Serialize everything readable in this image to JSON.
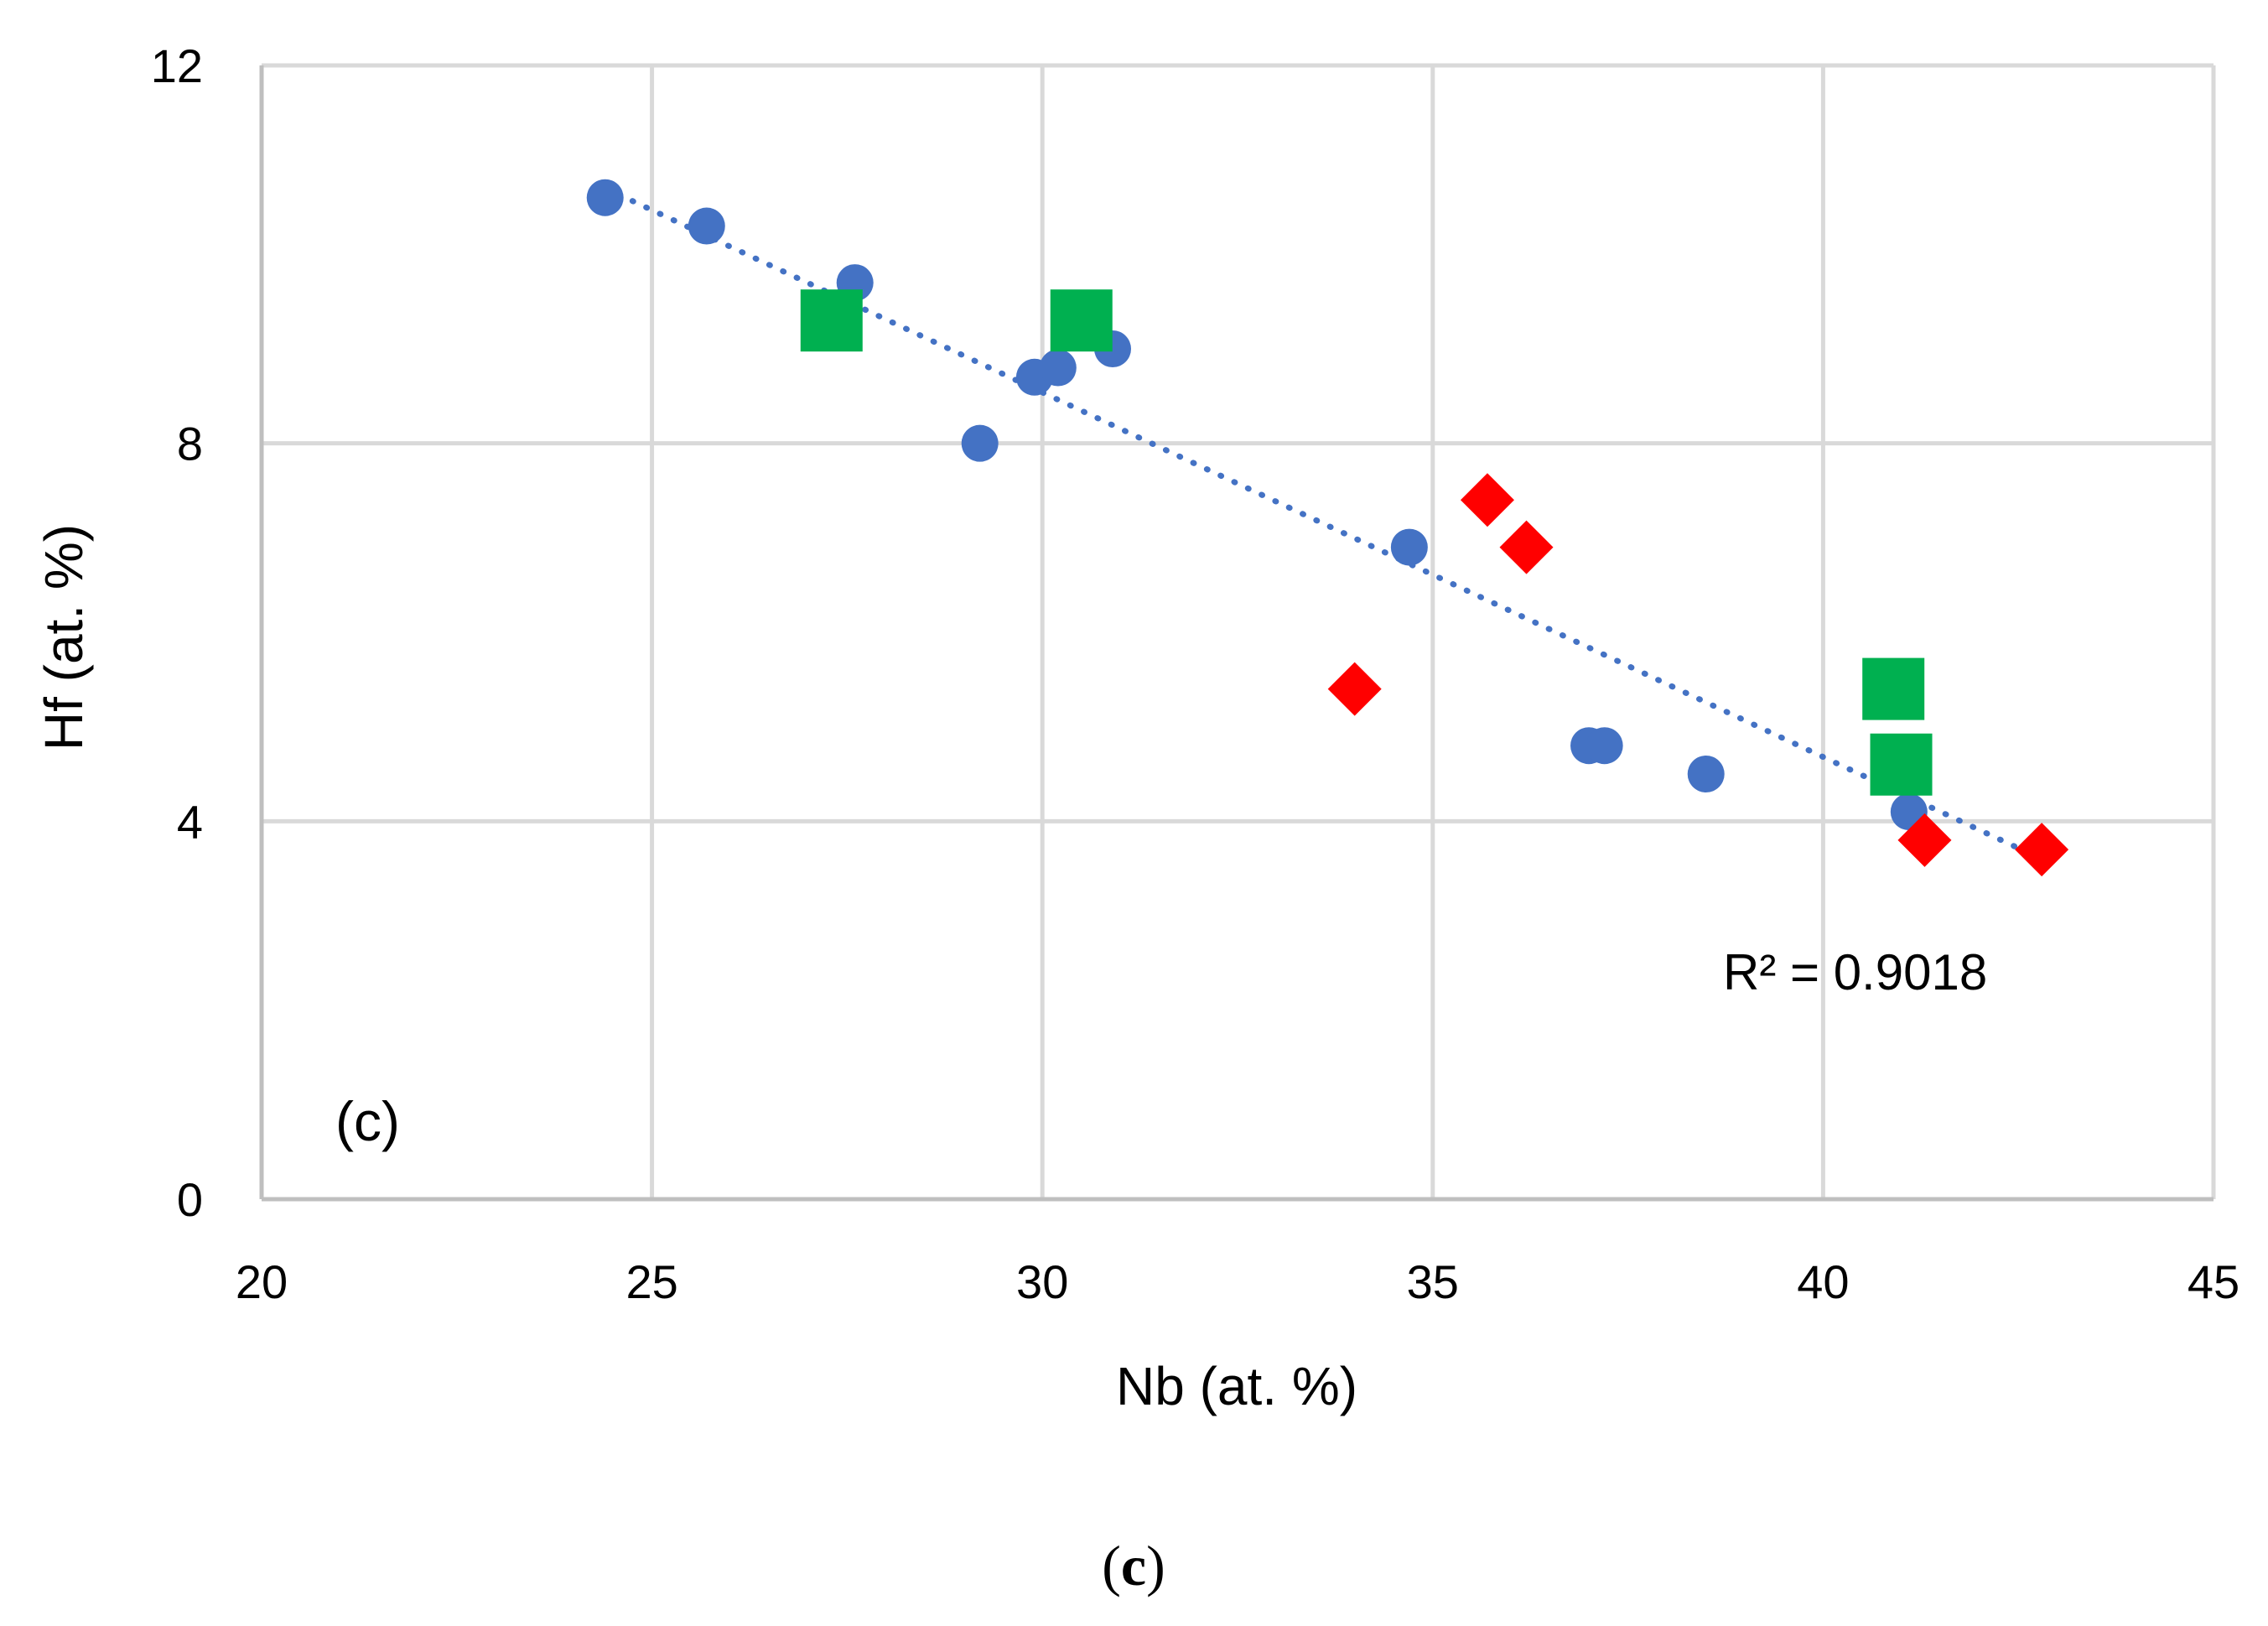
{
  "chart_data": {
    "type": "scatter",
    "title": "",
    "xlabel": "Nb (at. %)",
    "ylabel": "Hf (at. %)",
    "xlim": [
      20,
      45
    ],
    "ylim": [
      0,
      12
    ],
    "x_ticks": [
      "20",
      "25",
      "30",
      "35",
      "40",
      "45"
    ],
    "y_ticks": [
      "0",
      "4",
      "8",
      "12"
    ],
    "grid": true,
    "series": [
      {
        "name": "circles",
        "marker": "circle",
        "color": "#4472C4",
        "points": [
          {
            "x": 24.4,
            "y": 10.6
          },
          {
            "x": 25.7,
            "y": 10.3
          },
          {
            "x": 27.6,
            "y": 9.7
          },
          {
            "x": 29.2,
            "y": 8.0
          },
          {
            "x": 29.9,
            "y": 8.7
          },
          {
            "x": 30.2,
            "y": 8.8
          },
          {
            "x": 30.9,
            "y": 9.0
          },
          {
            "x": 34.7,
            "y": 6.9
          },
          {
            "x": 37.0,
            "y": 4.8
          },
          {
            "x": 37.2,
            "y": 4.8
          },
          {
            "x": 38.5,
            "y": 4.5
          },
          {
            "x": 41.1,
            "y": 4.1
          }
        ]
      },
      {
        "name": "squares",
        "marker": "square",
        "color": "#00B050",
        "points": [
          {
            "x": 27.3,
            "y": 9.3
          },
          {
            "x": 30.5,
            "y": 9.3
          },
          {
            "x": 40.9,
            "y": 5.4
          },
          {
            "x": 41.0,
            "y": 4.6
          }
        ]
      },
      {
        "name": "diamonds",
        "marker": "diamond",
        "color": "#FF0000",
        "points": [
          {
            "x": 34.0,
            "y": 5.4
          },
          {
            "x": 35.7,
            "y": 7.4
          },
          {
            "x": 36.2,
            "y": 6.9
          },
          {
            "x": 41.3,
            "y": 3.8
          },
          {
            "x": 42.8,
            "y": 3.7
          }
        ]
      }
    ],
    "trendline": {
      "type": "linear",
      "style": "dotted",
      "color": "#4472C4",
      "x_start": 24.4,
      "x_end": 42.8,
      "y_start": 10.7,
      "y_end": 3.6,
      "label": "R² = 0.9018"
    },
    "panel_label": "(c)",
    "caption": {
      "open": "(",
      "letter": "c",
      "close": ")"
    }
  }
}
